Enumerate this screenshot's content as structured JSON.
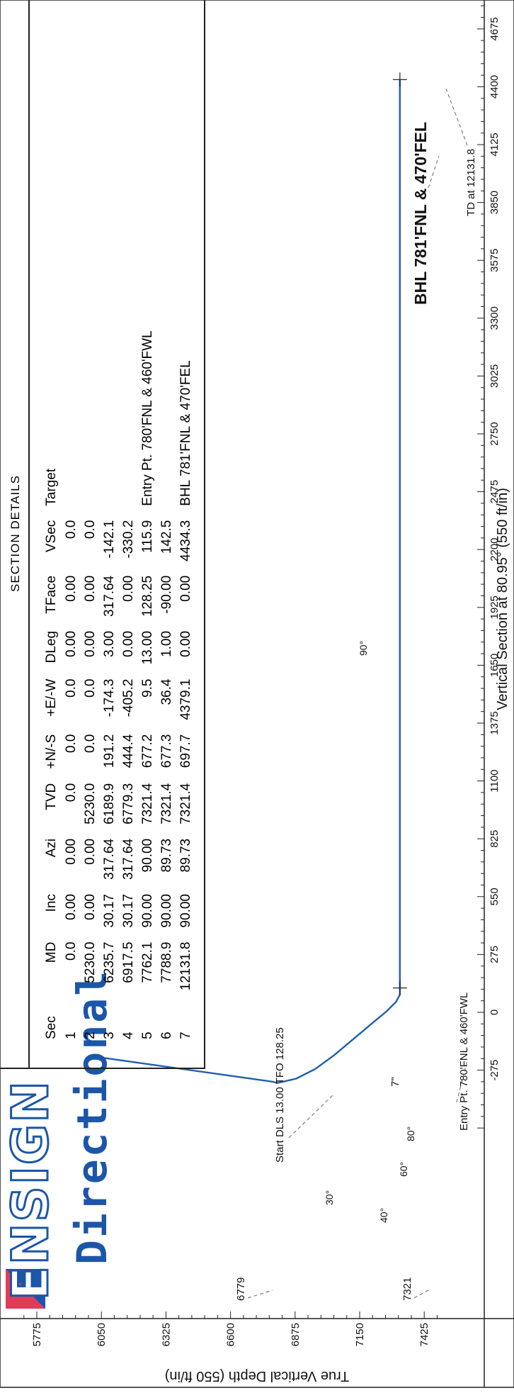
{
  "logo": {
    "name": "ENSIGN",
    "subtitle": "Directional"
  },
  "section_table": {
    "title": "SECTION DETAILS",
    "columns": [
      "Sec",
      "MD",
      "Inc",
      "Azi",
      "TVD",
      "+N/-S",
      "+E/-W",
      "DLeg",
      "TFace",
      "VSec",
      "Target"
    ],
    "rows": [
      [
        "1",
        "0.0",
        "0.00",
        "0.00",
        "0.0",
        "0.0",
        "0.0",
        "0.00",
        "0.00",
        "0.0",
        ""
      ],
      [
        "2",
        "5230.0",
        "0.00",
        "0.00",
        "5230.0",
        "0.0",
        "0.0",
        "0.00",
        "0.00",
        "0.0",
        ""
      ],
      [
        "3",
        "6235.7",
        "30.17",
        "317.64",
        "6189.9",
        "191.2",
        "-174.3",
        "3.00",
        "317.64",
        "-142.1",
        ""
      ],
      [
        "4",
        "6917.5",
        "30.17",
        "317.64",
        "6779.3",
        "444.4",
        "-405.2",
        "0.00",
        "0.00",
        "-330.2",
        ""
      ],
      [
        "5",
        "7762.1",
        "90.00",
        "90.00",
        "7321.4",
        "677.2",
        "9.5",
        "13.00",
        "128.25",
        "115.9",
        "Entry Pt. 780'FNL & 460'FWL"
      ],
      [
        "6",
        "7788.9",
        "90.00",
        "89.73",
        "7321.4",
        "677.3",
        "36.4",
        "1.00",
        "-90.00",
        "142.5",
        ""
      ],
      [
        "7",
        "12131.8",
        "90.00",
        "89.73",
        "7321.4",
        "697.7",
        "4379.1",
        "0.00",
        "0.00",
        "4434.3",
        "BHL 781'FNL & 470'FEL"
      ]
    ]
  },
  "chart_data": {
    "type": "line",
    "xlabel": "Vertical Section at 80.95° (550 ft/in)",
    "ylabel": "True Vertical Depth (550 ft/in)",
    "xlim": [
      -550,
      4800
    ],
    "ylim": [
      7500,
      5650
    ],
    "xticks": [
      "-275",
      "0",
      "275",
      "550",
      "825",
      "1100",
      "1375",
      "1650",
      "1925",
      "2200",
      "2475",
      "2750",
      "3025",
      "3300",
      "3575",
      "3850",
      "4125",
      "4400",
      "4675"
    ],
    "yticks": [
      "5775",
      "6050",
      "6325",
      "6600",
      "6875",
      "7150",
      "7425"
    ],
    "series": [
      {
        "points": [
          [
            -215,
            6050
          ],
          [
            -330,
            6779.3
          ],
          [
            -336,
            6800
          ],
          [
            -315,
            6880
          ],
          [
            -270,
            6960
          ],
          [
            -205,
            7040
          ],
          [
            -130,
            7120
          ],
          [
            -55,
            7200
          ],
          [
            5,
            7265
          ],
          [
            50,
            7305
          ],
          [
            84,
            7321.4
          ],
          [
            115.9,
            7321.4
          ],
          [
            142.5,
            7321.4
          ],
          [
            1000,
            7321.4
          ],
          [
            2200,
            7321.4
          ],
          [
            3300,
            7321.4
          ],
          [
            4434.3,
            7321.4
          ]
        ]
      }
    ],
    "markers": [
      {
        "label": "Entry Pt. 780'FNL & 460'FWL",
        "x": 115.9,
        "y": 7321.4
      },
      {
        "label": "BHL 781'FNL & 470'FEL",
        "x": 4434.3,
        "y": 7321.4
      }
    ],
    "annotations": {
      "start_dls": "Start DLS 13.00 TFO 128.25",
      "entry": "Entry Pt. 780'FNL & 460'FWL",
      "td": "TD at 12131.8",
      "bhl": "BHL 781'FNL & 470'FEL",
      "md_6779": "6779",
      "md_7321": "7321",
      "casing": "7\"",
      "inc_labels": [
        "30°",
        "40°",
        "60°",
        "80°",
        "90°"
      ]
    },
    "grid": false
  }
}
